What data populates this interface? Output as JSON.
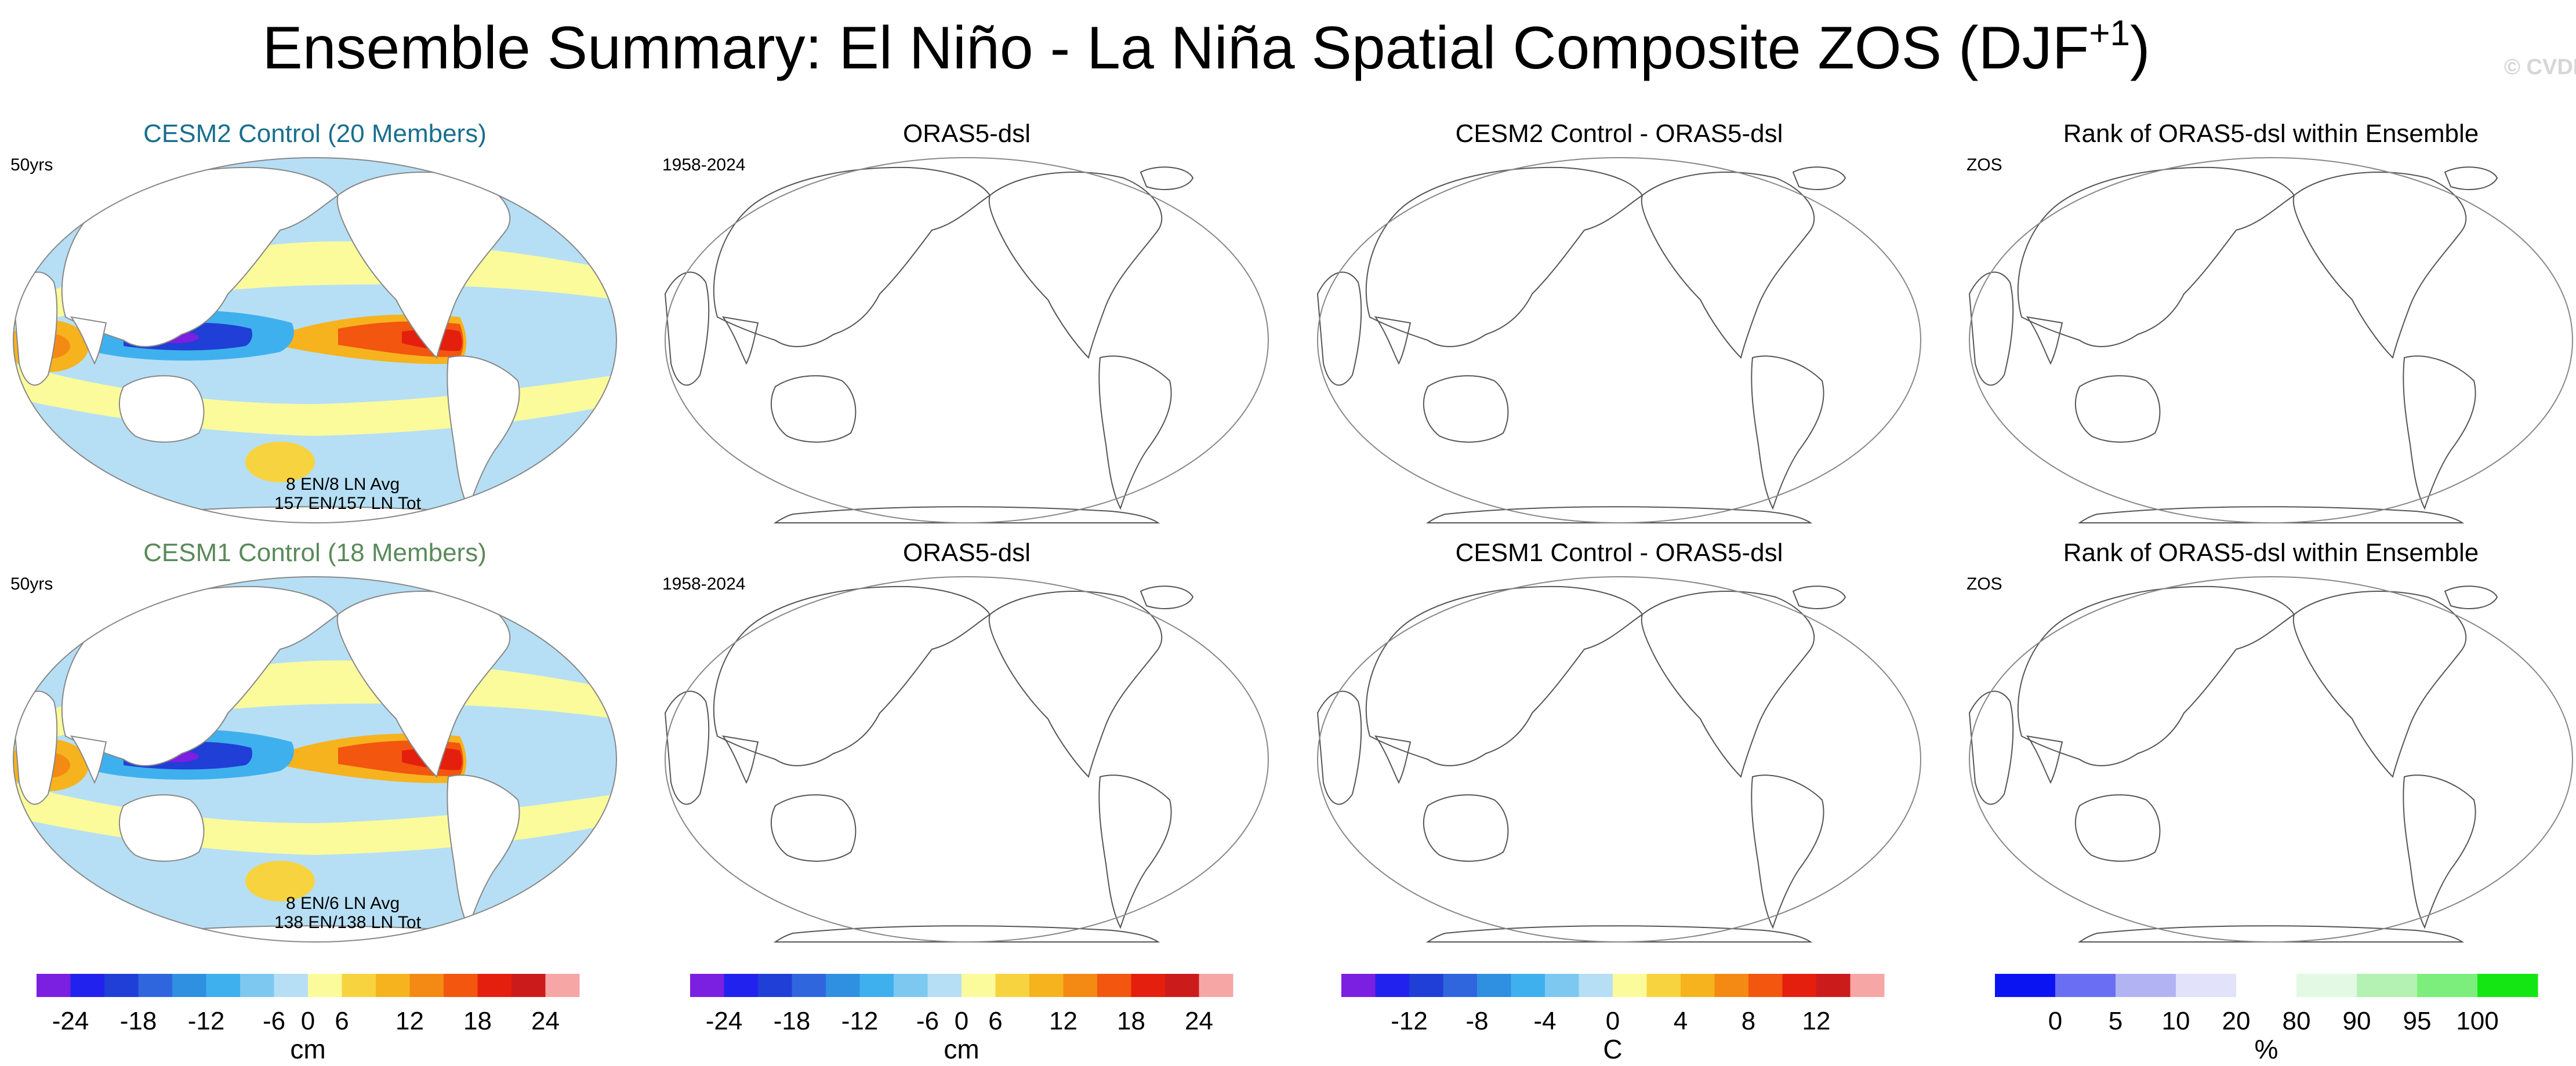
{
  "header": {
    "title_main": "Ensemble Summary: El Niño - La Niña Spatial Composite ZOS (DJF",
    "title_sup": "+1",
    "title_close": ")",
    "watermark": "© CVDP"
  },
  "colors": {
    "model1_title": "#1a6e8e",
    "model2_title": "#5a8a5a",
    "coast": "#555555",
    "frame": "#888888"
  },
  "chart_data": [
    {
      "type": "heatmap",
      "title": "CESM2 Control (20 Members)",
      "left_label": "50yrs",
      "notes": [
        "8 EN/8 LN Avg",
        "157 EN/157 LN Tot"
      ],
      "filled": true,
      "colorbar": "diff",
      "units": "cm"
    },
    {
      "type": "heatmap",
      "title": "ORAS5-dsl",
      "left_label": "1958-2024",
      "filled": false
    },
    {
      "type": "heatmap",
      "title": "CESM2 Control - ORAS5-dsl",
      "filled": false
    },
    {
      "type": "heatmap",
      "title": "Rank of ORAS5-dsl within Ensemble",
      "left_label": "ZOS",
      "filled": false
    },
    {
      "type": "heatmap",
      "title": "CESM1 Control (18 Members)",
      "left_label": "50yrs",
      "notes": [
        "8 EN/6 LN Avg",
        "138 EN/138 LN Tot"
      ],
      "filled": true,
      "colorbar": "diff",
      "units": "cm"
    },
    {
      "type": "heatmap",
      "title": "ORAS5-dsl",
      "left_label": "1958-2024",
      "filled": false
    },
    {
      "type": "heatmap",
      "title": "CESM1 Control - ORAS5-dsl",
      "filled": false
    },
    {
      "type": "heatmap",
      "title": "Rank of ORAS5-dsl within Ensemble",
      "left_label": "ZOS",
      "filled": false
    }
  ],
  "colorbars": [
    {
      "units": "cm",
      "colors": [
        "#7b1fe0",
        "#2222ee",
        "#1f3fd6",
        "#2f66de",
        "#2f8fe0",
        "#3fb0ee",
        "#7cc8f0",
        "#b6dff5",
        "#fbfb9c",
        "#f7d340",
        "#f6b31d",
        "#f48a14",
        "#f2560f",
        "#e41f0d",
        "#cc1b1b",
        "#f7a6a6"
      ],
      "ticks": [
        "-24",
        "-18",
        "-12",
        "-6",
        "0",
        "6",
        "12",
        "18",
        "24"
      ],
      "tick_slots": [
        1,
        3,
        5,
        7,
        8,
        9,
        11,
        13,
        15
      ]
    },
    {
      "units": "cm",
      "colors": [
        "#7b1fe0",
        "#2222ee",
        "#1f3fd6",
        "#2f66de",
        "#2f8fe0",
        "#3fb0ee",
        "#7cc8f0",
        "#b6dff5",
        "#fbfb9c",
        "#f7d340",
        "#f6b31d",
        "#f48a14",
        "#f2560f",
        "#e41f0d",
        "#cc1b1b",
        "#f7a6a6"
      ],
      "ticks": [
        "-24",
        "-18",
        "-12",
        "-6",
        "0",
        "6",
        "12",
        "18",
        "24"
      ],
      "tick_slots": [
        1,
        3,
        5,
        7,
        8,
        9,
        11,
        13,
        15
      ]
    },
    {
      "units": "C",
      "colors": [
        "#7b1fe0",
        "#2222ee",
        "#1f3fd6",
        "#2f66de",
        "#2f8fe0",
        "#3fb0ee",
        "#7cc8f0",
        "#b6dff5",
        "#fbfb9c",
        "#f7d340",
        "#f6b31d",
        "#f48a14",
        "#f2560f",
        "#e41f0d",
        "#cc1b1b",
        "#f7a6a6"
      ],
      "ticks": [
        "-12",
        "-8",
        "-4",
        "0",
        "4",
        "8",
        "12"
      ],
      "tick_slots": [
        2,
        4,
        6,
        8,
        10,
        12,
        14
      ]
    },
    {
      "units": "%",
      "colors": [
        "#0a14f2",
        "#6a6ef2",
        "#b2b3f3",
        "#e2e3fa",
        "#ffffff",
        "#e3f9e3",
        "#b3f2b3",
        "#7bee7b",
        "#14e614"
      ],
      "ticks": [
        "0",
        "5",
        "10",
        "20",
        "80",
        "90",
        "95",
        "100"
      ],
      "tick_slots": [
        1,
        2,
        3,
        4,
        5,
        6,
        7,
        8
      ]
    }
  ]
}
